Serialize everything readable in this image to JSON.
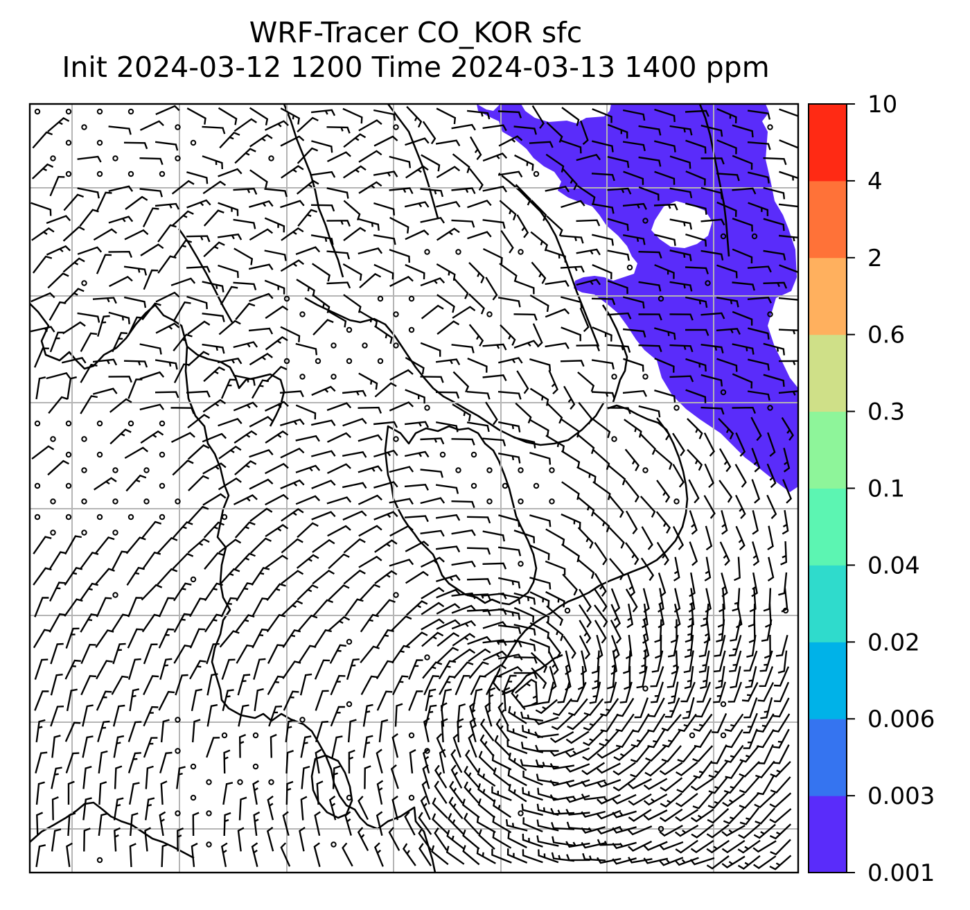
{
  "title": {
    "line1": "WRF-Tracer CO_KOR sfc",
    "line2": "Init 2024-03-12 1200 Time 2024-03-13 1400 ppm"
  },
  "colorbar": {
    "levels": [
      "0.001",
      "0.003",
      "0.006",
      "0.02",
      "0.04",
      "0.1",
      "0.3",
      "0.6",
      "2",
      "4",
      "10"
    ],
    "colors": [
      "#5a2cfa",
      "#3574f0",
      "#00b2e8",
      "#2fdbcc",
      "#5cf5b2",
      "#8ef59a",
      "#cfe088",
      "#ffb05e",
      "#ff7238",
      "#ff2a14"
    ]
  },
  "map": {
    "plume_color": "#5a2cfa",
    "coastline_color": "#000000",
    "gridline_color": "#b4b4b4",
    "wind_barb_color": "#000000"
  }
}
